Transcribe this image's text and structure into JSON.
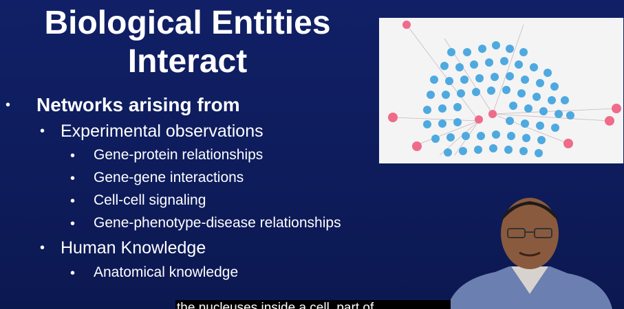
{
  "slide": {
    "title_line1": "Biological Entities",
    "title_line2": "Interact",
    "bullets": [
      {
        "text": "Networks arising from"
      },
      {
        "text": "Experimental observations"
      },
      {
        "text": "Gene-protein relationships"
      },
      {
        "text": "Gene-gene interactions"
      },
      {
        "text": "Cell-cell signaling"
      },
      {
        "text": "Gene-phenotype-disease relationships"
      },
      {
        "text": "Human Knowledge"
      },
      {
        "text": "Anatomical knowledge"
      }
    ]
  },
  "caption": {
    "text": "the nucleuses inside a cell, part of"
  },
  "colors": {
    "background": "#0e1c5c",
    "node_blue": "#4ea9e0",
    "node_pink": "#ef6b8a"
  }
}
